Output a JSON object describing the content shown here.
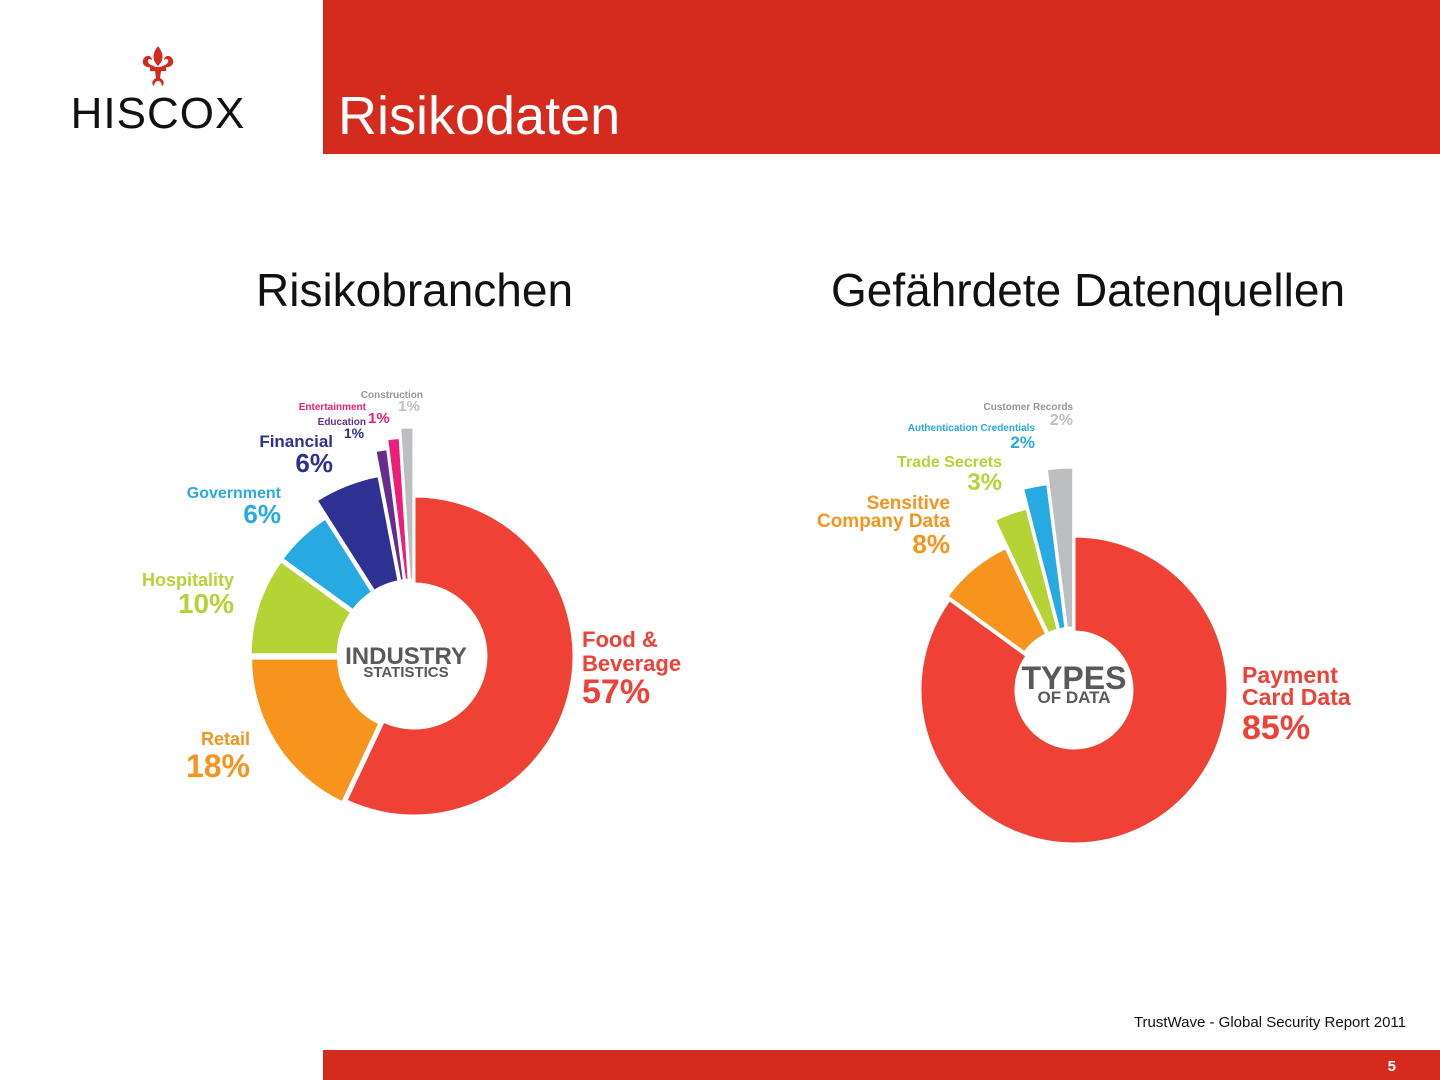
{
  "logo": {
    "text": "HISCOX"
  },
  "header": {
    "title": "Risikodaten"
  },
  "colors": {
    "brand_red": "#d52b1e",
    "food": "#ef4136",
    "retail": "#f7941d",
    "hospitality": "#b5d334",
    "government": "#27aae1",
    "financial": "#2e3192",
    "education": "#662d91",
    "entertainment": "#ec1e79",
    "construction": "#bcbec0"
  },
  "left": {
    "subtitle": "Risikobranchen"
  },
  "right": {
    "subtitle": "Gefährdete Datenquellen"
  },
  "chart_data": [
    {
      "type": "pie",
      "center_label": [
        "INDUSTRY",
        "STATISTICS"
      ],
      "categories": [
        "Food & Beverage",
        "Retail",
        "Hospitality",
        "Government",
        "Financial",
        "Education",
        "Entertainment",
        "Construction"
      ],
      "values": [
        57,
        18,
        10,
        6,
        6,
        1,
        1,
        1
      ],
      "value_labels": [
        "57%",
        "18%",
        "10%",
        "6%",
        "6%",
        "1%",
        "1%",
        "1%"
      ]
    },
    {
      "type": "pie",
      "center_label": [
        "TYPES",
        "OF DATA"
      ],
      "categories": [
        "Payment Card Data",
        "Sensitive Company Data",
        "Trade Secrets",
        "Authentication Credentials",
        "Customer Records"
      ],
      "values": [
        85,
        8,
        3,
        2,
        2
      ],
      "value_labels": [
        "85%",
        "8%",
        "3%",
        "2%",
        "2%"
      ]
    }
  ],
  "source": "TrustWave - Global Security Report 2011",
  "page_number": "5"
}
